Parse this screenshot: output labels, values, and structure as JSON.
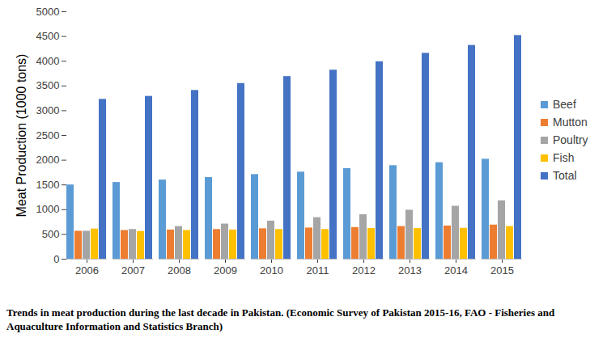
{
  "chart_data": {
    "type": "bar",
    "y_label": "Meat Production (1000 tons)",
    "caption": "Trends in meat production during the last decade in Pakistan. (Economic Survey of Pakistan 2015-16, FAO - Fisheries and Aquaculture Information and Statistics Branch)",
    "categories": [
      "2006",
      "2007",
      "2008",
      "2009",
      "2010",
      "2011",
      "2012",
      "2013",
      "2014",
      "2015"
    ],
    "series": [
      {
        "name": "Beef",
        "color": "#5b9bd5",
        "values": [
          1500,
          1550,
          1600,
          1650,
          1710,
          1760,
          1830,
          1890,
          1950,
          2020
        ]
      },
      {
        "name": "Mutton",
        "color": "#ed7d31",
        "values": [
          565,
          580,
          590,
          600,
          615,
          630,
          640,
          660,
          670,
          690
        ]
      },
      {
        "name": "Poultry",
        "color": "#a5a5a5",
        "values": [
          565,
          600,
          660,
          710,
          770,
          840,
          900,
          990,
          1070,
          1180
        ]
      },
      {
        "name": "Fish",
        "color": "#ffc000",
        "values": [
          610,
          560,
          580,
          590,
          600,
          600,
          620,
          620,
          625,
          660
        ]
      },
      {
        "name": "Total",
        "color": "#4472c4",
        "values": [
          3230,
          3290,
          3410,
          3550,
          3690,
          3820,
          3990,
          4160,
          4320,
          4520
        ]
      }
    ],
    "ylim": [
      0,
      5000
    ],
    "yticks": [
      0,
      500,
      1000,
      1500,
      2000,
      2500,
      3000,
      3500,
      4000,
      4500,
      5000
    ],
    "grid": false,
    "legend": "right"
  }
}
